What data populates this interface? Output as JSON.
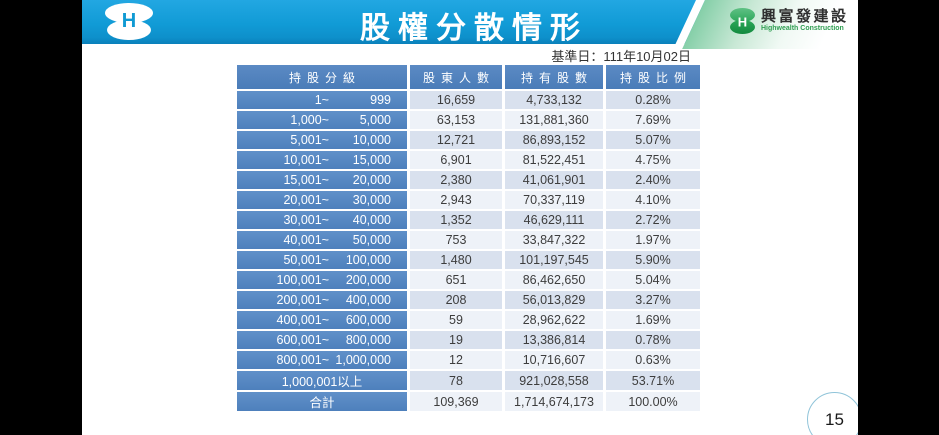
{
  "header": {
    "title": "股權分散情形",
    "logo_letter": "H",
    "company_name": "興富發建設",
    "company_name_en": "Highwealth Construction"
  },
  "date_label": "基準日：111年10月02日",
  "page": {
    "number": "15"
  },
  "colors": {
    "header_bar_blue": "#119bd6",
    "table_header_blue": "#4f81bd",
    "row_shade_dark": "#d9e1ee",
    "row_shade_light": "#eef2f8",
    "logo_green": "#2da75a",
    "page_circle_border": "#90c4d9"
  },
  "table": {
    "columns": [
      "持股分級",
      "股東人數",
      "持有股數",
      "持股比例"
    ],
    "rows": [
      {
        "range_from": "1~",
        "range_to": "999",
        "holders": "16,659",
        "shares": "4,733,132",
        "ratio": "0.28%"
      },
      {
        "range_from": "1,000~",
        "range_to": "5,000",
        "holders": "63,153",
        "shares": "131,881,360",
        "ratio": "7.69%"
      },
      {
        "range_from": "5,001~",
        "range_to": "10,000",
        "holders": "12,721",
        "shares": "86,893,152",
        "ratio": "5.07%"
      },
      {
        "range_from": "10,001~",
        "range_to": "15,000",
        "holders": "6,901",
        "shares": "81,522,451",
        "ratio": "4.75%"
      },
      {
        "range_from": "15,001~",
        "range_to": "20,000",
        "holders": "2,380",
        "shares": "41,061,901",
        "ratio": "2.40%"
      },
      {
        "range_from": "20,001~",
        "range_to": "30,000",
        "holders": "2,943",
        "shares": "70,337,119",
        "ratio": "4.10%"
      },
      {
        "range_from": "30,001~",
        "range_to": "40,000",
        "holders": "1,352",
        "shares": "46,629,111",
        "ratio": "2.72%"
      },
      {
        "range_from": "40,001~",
        "range_to": "50,000",
        "holders": "753",
        "shares": "33,847,322",
        "ratio": "1.97%"
      },
      {
        "range_from": "50,001~",
        "range_to": "100,000",
        "holders": "1,480",
        "shares": "101,197,545",
        "ratio": "5.90%"
      },
      {
        "range_from": "100,001~",
        "range_to": "200,000",
        "holders": "651",
        "shares": "86,462,650",
        "ratio": "5.04%"
      },
      {
        "range_from": "200,001~",
        "range_to": "400,000",
        "holders": "208",
        "shares": "56,013,829",
        "ratio": "3.27%"
      },
      {
        "range_from": "400,001~",
        "range_to": "600,000",
        "holders": "59",
        "shares": "28,962,622",
        "ratio": "1.69%"
      },
      {
        "range_from": "600,001~",
        "range_to": "800,000",
        "holders": "19",
        "shares": "13,386,814",
        "ratio": "0.78%"
      },
      {
        "range_from": "800,001~",
        "range_to": "1,000,000",
        "holders": "12",
        "shares": "10,716,607",
        "ratio": "0.63%"
      },
      {
        "label": "1,000,001以上",
        "center": true,
        "holders": "78",
        "shares": "921,028,558",
        "ratio": "53.71%"
      },
      {
        "label": "合計",
        "center": true,
        "holders": "109,369",
        "shares": "1,714,674,173",
        "ratio": "100.00%"
      }
    ]
  }
}
